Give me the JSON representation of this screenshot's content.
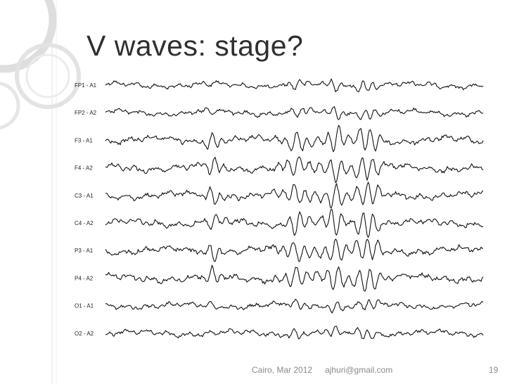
{
  "slide": {
    "title": "V waves: stage?",
    "footer": {
      "date": "Cairo, Mar 2012",
      "email": "ajhuri@gmail.com",
      "page_number": "19"
    }
  },
  "eeg": {
    "channels": [
      {
        "label": "FP1 - A1"
      },
      {
        "label": "FP2 - A2"
      },
      {
        "label": "F3 - A1"
      },
      {
        "label": "F4 - A2"
      },
      {
        "label": "C3 - A1"
      },
      {
        "label": "C4 - A2"
      },
      {
        "label": "P3 - A1"
      },
      {
        "label": "P4 - A2"
      },
      {
        "label": "O1 - A1"
      },
      {
        "label": "O2 - A2"
      }
    ]
  },
  "colors": {
    "title": "#2f2f2f",
    "footer": "#8a8a8a",
    "trace": "#111111",
    "decoration": "#d9d9d9"
  }
}
